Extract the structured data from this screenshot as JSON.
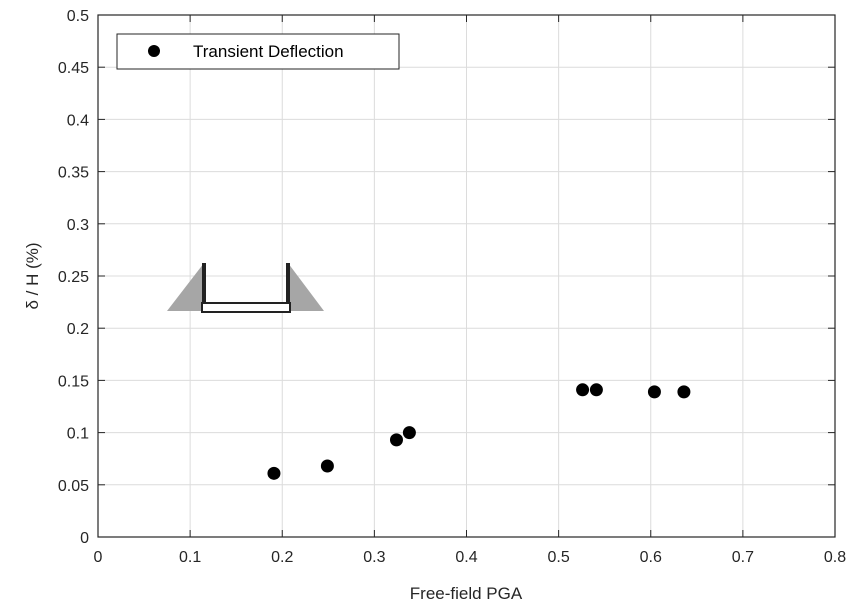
{
  "chart_data": {
    "type": "scatter",
    "xlabel": "Free-field PGA",
    "ylabel": "δ / H (%)",
    "xlim": [
      0,
      0.8
    ],
    "ylim": [
      0,
      0.5
    ],
    "xticks": [
      "0",
      "0.1",
      "0.2",
      "0.3",
      "0.4",
      "0.5",
      "0.6",
      "0.7",
      "0.8"
    ],
    "yticks": [
      "0",
      "0.05",
      "0.1",
      "0.15",
      "0.2",
      "0.25",
      "0.3",
      "0.35",
      "0.4",
      "0.45",
      "0.5"
    ],
    "grid": true,
    "legend_position": "top-left",
    "series": [
      {
        "name": "Transient Deflection",
        "color": "#000000",
        "marker": "filled-circle",
        "x": [
          0.191,
          0.249,
          0.324,
          0.338,
          0.526,
          0.541,
          0.604,
          0.636
        ],
        "y": [
          0.061,
          0.068,
          0.093,
          0.1,
          0.141,
          0.141,
          0.139,
          0.139
        ]
      }
    ],
    "inset_icon": "retaining-wall-schematic-icon"
  }
}
